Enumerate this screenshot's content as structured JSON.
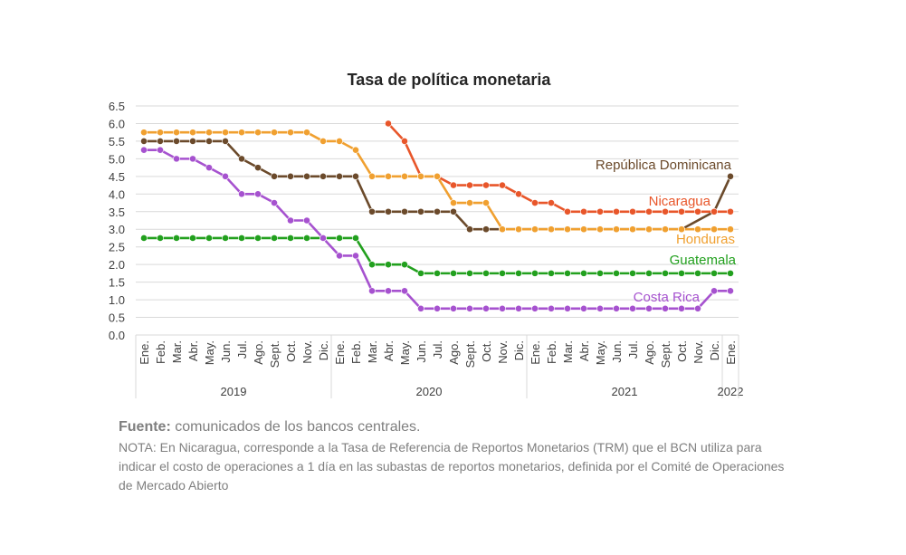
{
  "chart_data": {
    "type": "line",
    "title": "Tasa de política monetaria",
    "y_ticks": [
      "0.0",
      "0.5",
      "1.0",
      "1.5",
      "2.0",
      "2.5",
      "3.0",
      "3.5",
      "4.0",
      "4.5",
      "5.0",
      "5.5",
      "6.0",
      "6.5"
    ],
    "ylim": [
      0,
      6.5
    ],
    "grid": true,
    "months": [
      "Ene.",
      "Feb.",
      "Mar.",
      "Abr.",
      "May.",
      "Jun.",
      "Jul.",
      "Ago.",
      "Sept.",
      "Oct.",
      "Nov.",
      "Dic.",
      "Ene.",
      "Feb.",
      "Mar.",
      "Abr.",
      "May.",
      "Jun.",
      "Jul.",
      "Ago.",
      "Sept.",
      "Oct.",
      "Nov.",
      "Dic.",
      "Ene.",
      "Feb.",
      "Mar.",
      "Abr.",
      "May.",
      "Jun.",
      "Jul.",
      "Ago.",
      "Sept.",
      "Oct.",
      "Nov.",
      "Dic.",
      "Ene."
    ],
    "years": [
      {
        "label": "2019",
        "start": 0,
        "count": 12
      },
      {
        "label": "2020",
        "start": 12,
        "count": 12
      },
      {
        "label": "2021",
        "start": 24,
        "count": 12
      },
      {
        "label": "2022",
        "start": 36,
        "count": 1
      }
    ],
    "series": [
      {
        "name": "República Dominicana",
        "color": "#6b4a2b",
        "label_color": "#6b4a2b",
        "values": [
          5.5,
          5.5,
          5.5,
          5.5,
          5.5,
          5.5,
          5.0,
          4.75,
          4.5,
          4.5,
          4.5,
          4.5,
          4.5,
          4.5,
          3.5,
          3.5,
          3.5,
          3.5,
          3.5,
          3.5,
          3.0,
          3.0,
          3.0,
          3.0,
          3.0,
          3.0,
          3.0,
          3.0,
          3.0,
          3.0,
          3.0,
          3.0,
          3.0,
          3.0,
          null,
          3.5,
          4.5
        ]
      },
      {
        "name": "Nicaragua",
        "color": "#e8562a",
        "label_color": "#e8562a",
        "values": [
          null,
          null,
          null,
          null,
          null,
          null,
          null,
          null,
          null,
          null,
          null,
          null,
          null,
          null,
          null,
          6.0,
          5.5,
          4.5,
          4.5,
          4.25,
          4.25,
          4.25,
          4.25,
          4.0,
          3.75,
          3.75,
          3.5,
          3.5,
          3.5,
          3.5,
          3.5,
          3.5,
          3.5,
          3.5,
          3.5,
          3.5,
          3.5
        ]
      },
      {
        "name": "Honduras",
        "color": "#f0a030",
        "label_color": "#f0a030",
        "values": [
          5.75,
          5.75,
          5.75,
          5.75,
          5.75,
          5.75,
          5.75,
          5.75,
          5.75,
          5.75,
          5.75,
          5.5,
          5.5,
          5.25,
          4.5,
          4.5,
          4.5,
          4.5,
          4.5,
          3.75,
          3.75,
          3.75,
          3.0,
          3.0,
          3.0,
          3.0,
          3.0,
          3.0,
          3.0,
          3.0,
          3.0,
          3.0,
          3.0,
          3.0,
          3.0,
          3.0,
          3.0
        ]
      },
      {
        "name": "Guatemala",
        "color": "#22a01e",
        "label_color": "#22a01e",
        "values": [
          2.75,
          2.75,
          2.75,
          2.75,
          2.75,
          2.75,
          2.75,
          2.75,
          2.75,
          2.75,
          2.75,
          2.75,
          2.75,
          2.75,
          2.0,
          2.0,
          2.0,
          1.75,
          1.75,
          1.75,
          1.75,
          1.75,
          1.75,
          1.75,
          1.75,
          1.75,
          1.75,
          1.75,
          1.75,
          1.75,
          1.75,
          1.75,
          1.75,
          1.75,
          1.75,
          1.75,
          1.75
        ]
      },
      {
        "name": "Costa Rica",
        "color": "#a652cf",
        "label_color": "#a652cf",
        "values": [
          5.25,
          5.25,
          5.0,
          5.0,
          4.75,
          4.5,
          4.0,
          4.0,
          3.75,
          3.25,
          3.25,
          2.75,
          2.25,
          2.25,
          1.25,
          1.25,
          1.25,
          0.75,
          0.75,
          0.75,
          0.75,
          0.75,
          0.75,
          0.75,
          0.75,
          0.75,
          0.75,
          0.75,
          0.75,
          0.75,
          0.75,
          0.75,
          0.75,
          0.75,
          0.75,
          1.25,
          1.25
        ]
      }
    ]
  },
  "footer": {
    "source_prefix": "Fuente:",
    "source_text": " comunicados de los bancos centrales.",
    "note": "NOTA: En Nicaragua, corresponde a la Tasa de Referencia de Reportos Monetarios (TRM) que el BCN utiliza para indicar el costo de operaciones a 1 día en las subastas de reportos monetarios, definida por el Comité de Operaciones de Mercado Abierto"
  }
}
